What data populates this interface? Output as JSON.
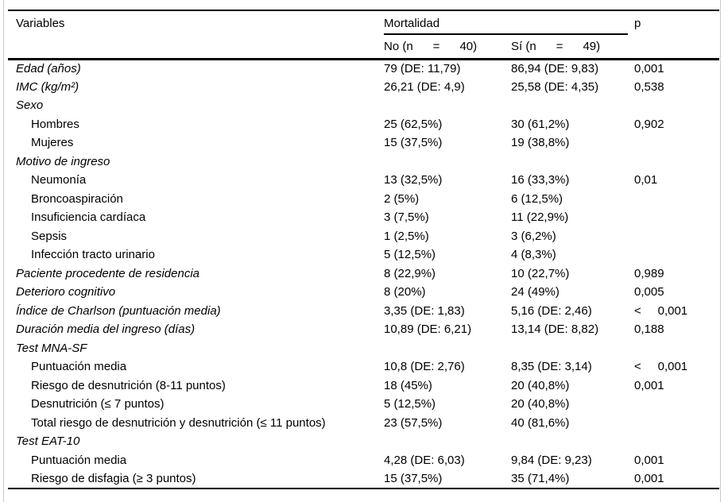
{
  "table": {
    "header": {
      "variables": "Variables",
      "group": "Mortalidad",
      "p": "p",
      "sub_no": "No (n      =      40)",
      "sub_si": "Sí (n      =      49)"
    },
    "rows": [
      {
        "label": "Edad (años)",
        "indent": false,
        "no": "79 (DE: 11,79)",
        "si": "86,94 (DE: 9,83)",
        "p": "0,001"
      },
      {
        "label": "IMC (kg/m²)",
        "indent": false,
        "no": "26,21 (DE: 4,9)",
        "si": "25,58 (DE: 4,35)",
        "p": "0,538"
      },
      {
        "label": "Sexo",
        "indent": false,
        "no": "",
        "si": "",
        "p": ""
      },
      {
        "label": "Hombres",
        "indent": true,
        "no": "25 (62,5%)",
        "si": "30 (61,2%)",
        "p": "0,902"
      },
      {
        "label": "Mujeres",
        "indent": true,
        "no": "15 (37,5%)",
        "si": "19 (38,8%)",
        "p": ""
      },
      {
        "label": "Motivo de ingreso",
        "indent": false,
        "no": "",
        "si": "",
        "p": ""
      },
      {
        "label": "Neumonía",
        "indent": true,
        "no": "13 (32,5%)",
        "si": "16 (33,3%)",
        "p": "0,01"
      },
      {
        "label": "Broncoaspiración",
        "indent": true,
        "no": "2 (5%)",
        "si": "6 (12,5%)",
        "p": ""
      },
      {
        "label": "Insuficiencia cardíaca",
        "indent": true,
        "no": "3 (7,5%)",
        "si": "11 (22,9%)",
        "p": ""
      },
      {
        "label": "Sepsis",
        "indent": true,
        "no": "1 (2,5%)",
        "si": "3 (6,2%)",
        "p": ""
      },
      {
        "label": "Infección tracto urinario",
        "indent": true,
        "no": "5 (12,5%)",
        "si": "4 (8,3%)",
        "p": ""
      },
      {
        "label": "Paciente procedente de residencia",
        "indent": false,
        "no": "8 (22,9%)",
        "si": "10 (22,7%)",
        "p": "0,989"
      },
      {
        "label": "Deterioro cognitivo",
        "indent": false,
        "no": "8 (20%)",
        "si": "24 (49%)",
        "p": "0,005"
      },
      {
        "label": "Índice de Charlson (puntuación media)",
        "indent": false,
        "no": "3,35 (DE: 1,83)",
        "si": "5,16 (DE: 2,46)",
        "p": "<     0,001"
      },
      {
        "label": "Duración media del ingreso (días)",
        "indent": false,
        "no": "10,89 (DE: 6,21)",
        "si": "13,14 (DE: 8,82)",
        "p": "0,188"
      },
      {
        "label": "Test MNA-SF",
        "indent": false,
        "no": "",
        "si": "",
        "p": ""
      },
      {
        "label": "Puntuación media",
        "indent": true,
        "no": "10,8 (DE: 2,76)",
        "si": "8,35 (DE: 3,14)",
        "p": "<     0,001"
      },
      {
        "label": "Riesgo de desnutrición (8-11 puntos)",
        "indent": true,
        "no": "18 (45%)",
        "si": "20 (40,8%)",
        "p": "0,001"
      },
      {
        "label": "Desnutrición (≤ 7 puntos)",
        "indent": true,
        "no": "5 (12,5%)",
        "si": "20 (40,8%)",
        "p": ""
      },
      {
        "label": "Total riesgo de desnutrición y desnutrición (≤ 11 puntos)",
        "indent": true,
        "no": "23 (57,5%)",
        "si": "40 (81,6%)",
        "p": ""
      },
      {
        "label": "Test EAT-10",
        "indent": false,
        "no": "",
        "si": "",
        "p": ""
      },
      {
        "label": "Puntuación media",
        "indent": true,
        "no": "4,28 (DE: 6,03)",
        "si": "9,84 (DE: 9,23)",
        "p": "0,001"
      },
      {
        "label": "Riesgo de disfagia (≥ 3 puntos)",
        "indent": true,
        "no": "15 (37,5%)",
        "si": "35 (71,4%)",
        "p": "0,001"
      }
    ]
  }
}
